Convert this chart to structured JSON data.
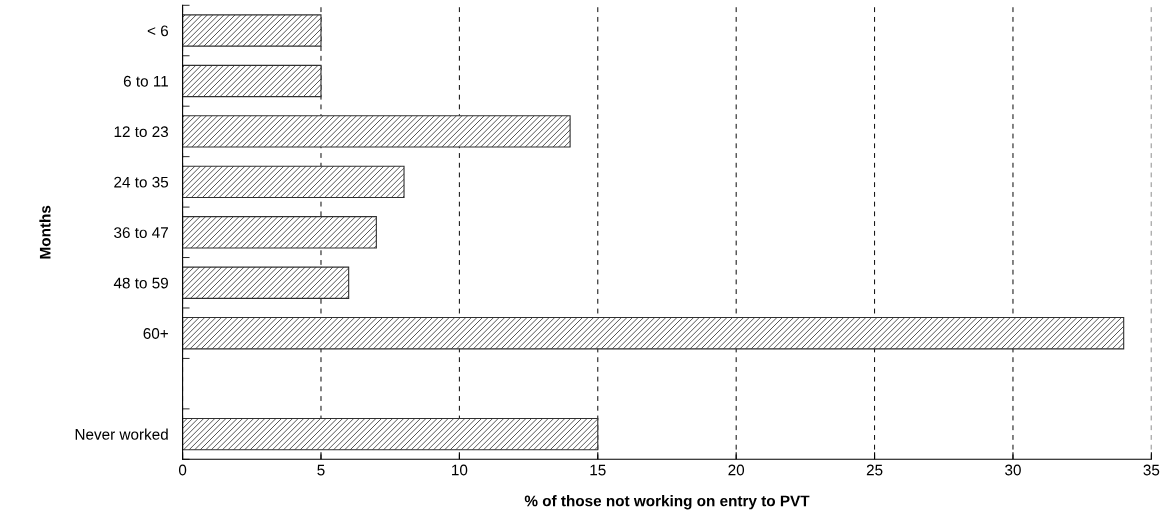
{
  "chart_data": {
    "type": "bar",
    "orientation": "horizontal",
    "xlabel": "% of those not working on entry to PVT",
    "ylabel": "Months",
    "categories": [
      "< 6",
      "6 to 11",
      "12 to 23",
      "24 to 35",
      "36 to 47",
      "48 to 59",
      "60+",
      null,
      "Never worked"
    ],
    "values": [
      5,
      5,
      14,
      8,
      7,
      6,
      34,
      null,
      15
    ],
    "color": "#303030",
    "xlim": [
      0,
      35
    ],
    "xticks": [
      0,
      5,
      10,
      15,
      20,
      25,
      30,
      35
    ],
    "grid": "x",
    "line_style": "dashed"
  }
}
